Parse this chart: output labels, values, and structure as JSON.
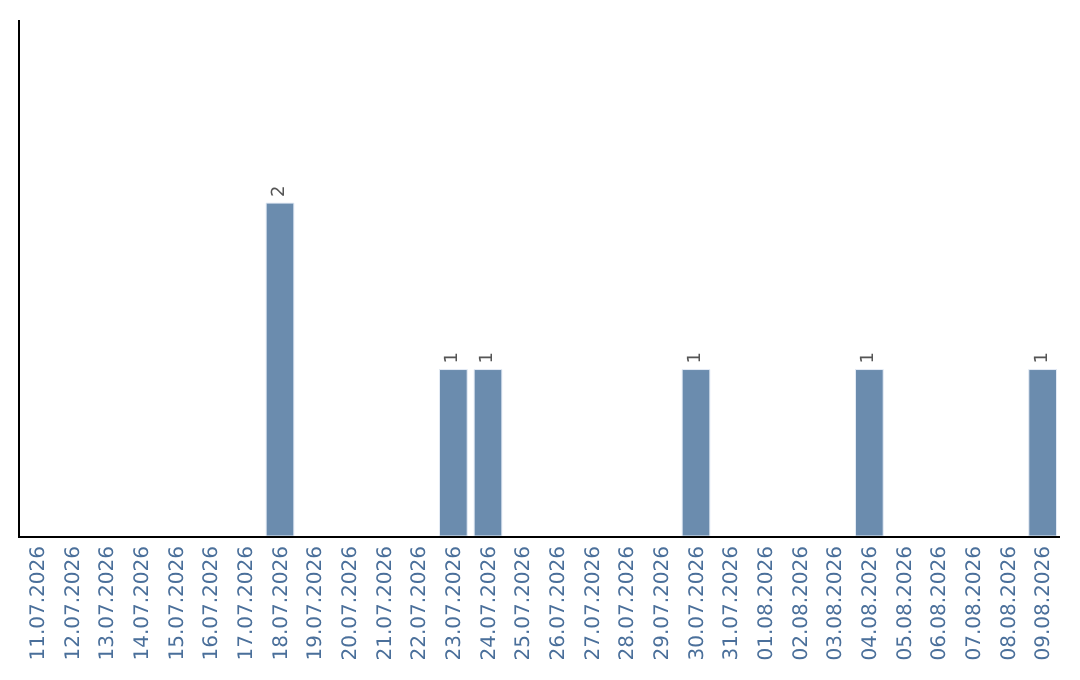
{
  "chart_data": {
    "type": "bar",
    "categories": [
      "11.07.2026",
      "12.07.2026",
      "13.07.2026",
      "14.07.2026",
      "15.07.2026",
      "16.07.2026",
      "17.07.2026",
      "18.07.2026",
      "19.07.2026",
      "20.07.2026",
      "21.07.2026",
      "22.07.2026",
      "23.07.2026",
      "24.07.2026",
      "25.07.2026",
      "26.07.2026",
      "27.07.2026",
      "28.07.2026",
      "29.07.2026",
      "30.07.2026",
      "31.07.2026",
      "01.08.2026",
      "02.08.2026",
      "03.08.2026",
      "04.08.2026",
      "05.08.2026",
      "06.08.2026",
      "07.08.2026",
      "08.08.2026",
      "09.08.2026"
    ],
    "values": [
      null,
      null,
      null,
      null,
      null,
      null,
      null,
      2,
      null,
      null,
      null,
      null,
      1,
      1,
      null,
      null,
      null,
      null,
      null,
      1,
      null,
      null,
      null,
      null,
      1,
      null,
      null,
      null,
      null,
      1
    ],
    "color": "#6b8cae",
    "ylim": [
      0,
      3.1
    ],
    "data_labels": true,
    "tick_labels": "x"
  }
}
